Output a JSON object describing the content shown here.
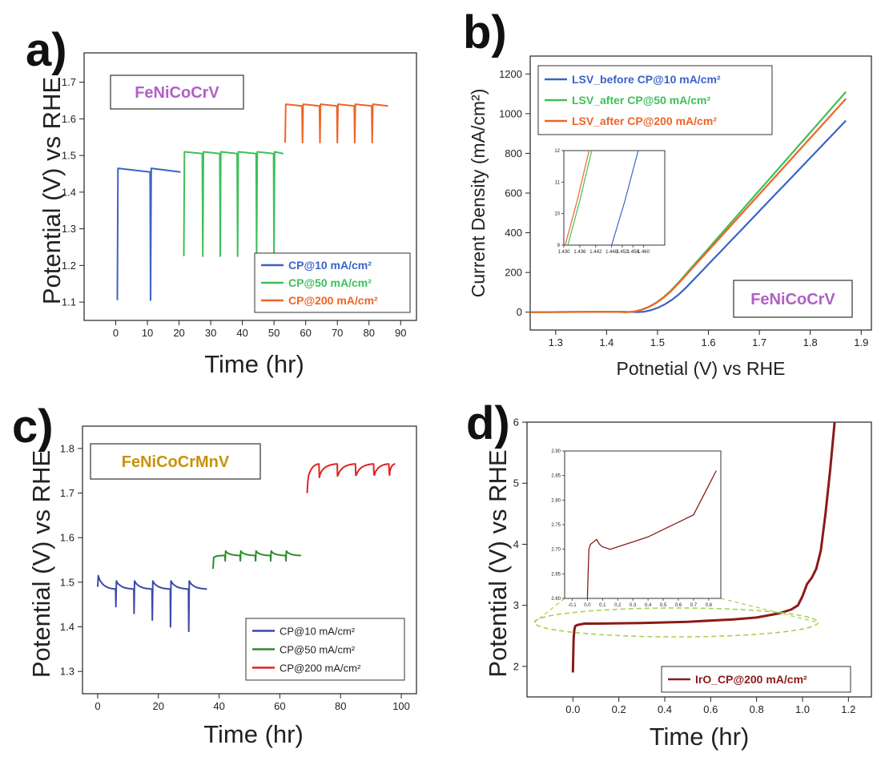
{
  "figure": {
    "panels": {
      "a": {
        "letter": "a)",
        "label_box": {
          "text": "FeNiCoCrV",
          "color": "#b25fc7"
        }
      },
      "b": {
        "letter": "b)",
        "label_box": {
          "text": "FeNiCoCrV",
          "color": "#b25fc7"
        }
      },
      "c": {
        "letter": "c)",
        "label_box": {
          "text": "FeNiCoCrMnV",
          "color": "#c8920c"
        }
      },
      "d": {
        "letter": "d)"
      }
    }
  },
  "chart_data": [
    {
      "id": "a",
      "type": "line",
      "xlabel": "Time (hr)",
      "ylabel": "Potential (V) vs RHE",
      "xlim": [
        -10,
        95
      ],
      "ylim": [
        1.05,
        1.78
      ],
      "xticks": [
        0,
        10,
        20,
        30,
        40,
        50,
        60,
        70,
        80,
        90
      ],
      "yticks": [
        1.1,
        1.2,
        1.3,
        1.4,
        1.5,
        1.6,
        1.7
      ],
      "legend": "bottom-right",
      "series": [
        {
          "name": "CP@10 mA/cm²",
          "color": "#3a63c9",
          "base": 1.455,
          "start_value": 1.465,
          "x_range": [
            0.5,
            20.5
          ],
          "spike_x": [
            0.8,
            11.0
          ],
          "spike_min": 1.105
        },
        {
          "name": "CP@50 mA/cm²",
          "color": "#3fbf5a",
          "base": 1.505,
          "start_value": 1.51,
          "x_range": [
            21.5,
            53.0
          ],
          "spike_x": [
            21.8,
            27.5,
            33.0,
            38.5,
            44.5,
            50.0
          ],
          "spike_min": 1.225
        },
        {
          "name": "CP@200 mA/cm²",
          "color": "#ee6426",
          "base": 1.635,
          "start_value": 1.64,
          "x_range": [
            53.5,
            86.0
          ],
          "spike_x": [
            53.8,
            59.0,
            64.5,
            70.0,
            75.5,
            81.0
          ],
          "spike_min": 1.535
        }
      ]
    },
    {
      "id": "b",
      "type": "line",
      "xlabel": "Potnetial (V) vs RHE",
      "ylabel": "Current Density (mA/cm²)",
      "xlim": [
        1.25,
        1.92
      ],
      "ylim": [
        -90,
        1290
      ],
      "xticks": [
        1.3,
        1.4,
        1.5,
        1.6,
        1.7,
        1.8,
        1.9
      ],
      "yticks": [
        0,
        200,
        400,
        600,
        800,
        1000,
        1200
      ],
      "legend": "top-left",
      "series": [
        {
          "name": "LSV_before CP@10 mA/cm²",
          "color": "#3a63c9",
          "onset": 1.46,
          "x_end": 1.87,
          "y_end": 965
        },
        {
          "name": "LSV_after CP@50 mA/cm²",
          "color": "#3fbf5a",
          "onset": 1.44,
          "x_end": 1.87,
          "y_end": 1110
        },
        {
          "name": "LSV_after CP@200 mA/cm²",
          "color": "#ee6426",
          "onset": 1.44,
          "x_end": 1.87,
          "y_end": 1075
        }
      ],
      "inset": {
        "xlim": [
          1.43,
          1.468
        ],
        "ylim": [
          9,
          12
        ],
        "xticks": [
          "1.430",
          "1.436",
          "1.442",
          "1.448",
          "1.452",
          "1.456",
          "1.460"
        ],
        "yticks": [
          "9",
          "10",
          "11",
          "12"
        ],
        "series": [
          {
            "color": "#3a63c9",
            "x": [
              1.448,
              1.458
            ],
            "y": [
              9,
              12
            ]
          },
          {
            "color": "#3fbf5a",
            "x": [
              1.4315,
              1.4405
            ],
            "y": [
              9,
              12
            ]
          },
          {
            "color": "#ee6426",
            "x": [
              1.4305,
              1.4395
            ],
            "y": [
              9,
              12
            ]
          }
        ]
      }
    },
    {
      "id": "c",
      "type": "line",
      "xlabel": "Time (hr)",
      "ylabel": "Potential (V) vs RHE",
      "xlim": [
        -5,
        105
      ],
      "ylim": [
        1.25,
        1.85
      ],
      "xticks": [
        0,
        20,
        40,
        60,
        80,
        100
      ],
      "yticks": [
        1.3,
        1.4,
        1.5,
        1.6,
        1.7,
        1.8
      ],
      "legend": "bottom-right",
      "series": [
        {
          "name": "CP@10 mA/cm²",
          "color": "#3c4aa8",
          "x_range": [
            0,
            36
          ],
          "start_value": 1.515,
          "base": 1.485,
          "recover_to": 1.503,
          "spike_x": [
            6,
            12,
            18,
            24,
            30
          ],
          "spike_mins": [
            1.445,
            1.43,
            1.415,
            1.4,
            1.39
          ]
        },
        {
          "name": "CP@50 mA/cm²",
          "color": "#2d8a2d",
          "x_range": [
            38,
            67
          ],
          "start_value": 1.555,
          "base": 1.56,
          "recover_to": 1.57,
          "spike_x": [
            42,
            47,
            52,
            57,
            62
          ],
          "spike_mins": [
            1.548,
            1.548,
            1.548,
            1.548,
            1.548
          ]
        },
        {
          "name": "CP@200 mA/cm²",
          "color": "#e02424",
          "x_range": [
            69,
            98
          ],
          "start_value": 1.725,
          "base": 1.765,
          "recover_to": 1.74,
          "spike_x": [
            73,
            79,
            85,
            91,
            96
          ],
          "spike_mins": [
            1.735,
            1.738,
            1.74,
            1.742,
            1.745
          ]
        }
      ]
    },
    {
      "id": "d",
      "type": "line",
      "xlabel": "Time (hr)",
      "ylabel": "Potential (V) vs RHE",
      "xlim": [
        -0.2,
        1.3
      ],
      "ylim": [
        1.5,
        6.0
      ],
      "xticks": [
        "0.0",
        "0.2",
        "0.4",
        "0.6",
        "0.8",
        "1.0",
        "1.2"
      ],
      "yticks": [
        2,
        3,
        4,
        5,
        6
      ],
      "legend": "bottom-right",
      "series": [
        {
          "name": "IrO_CP@200 mA/cm²",
          "color": "#8b1a1a",
          "x": [
            0.0,
            0.003,
            0.006,
            0.01,
            0.02,
            0.05,
            0.1,
            0.3,
            0.5,
            0.7,
            0.8,
            0.9,
            0.95,
            0.98,
            1.0,
            1.02,
            1.04,
            1.06,
            1.08,
            1.1,
            1.12,
            1.135,
            1.14
          ],
          "y": [
            1.9,
            2.45,
            2.6,
            2.66,
            2.68,
            2.7,
            2.7,
            2.71,
            2.73,
            2.77,
            2.8,
            2.87,
            2.93,
            3.0,
            3.15,
            3.35,
            3.45,
            3.6,
            3.9,
            4.5,
            5.2,
            5.8,
            6.0
          ]
        }
      ],
      "inset": {
        "xlim": [
          -0.15,
          0.88
        ],
        "ylim": [
          2.6,
          2.9
        ],
        "xticks": [
          "-0.1",
          "0.0",
          "0.1",
          "0.2",
          "0.3",
          "0.4",
          "0.5",
          "0.6",
          "0.7",
          "0.8"
        ],
        "yticks": [
          "2.60",
          "2.65",
          "2.70",
          "2.75",
          "2.80",
          "2.85",
          "2.90"
        ],
        "series": [
          {
            "color": "#8b1a1a",
            "x": [
              0.0,
              0.005,
              0.01,
              0.02,
              0.04,
              0.06,
              0.08,
              0.1,
              0.15,
              0.2,
              0.3,
              0.4,
              0.5,
              0.6,
              0.7,
              0.75,
              0.8,
              0.85
            ],
            "y": [
              2.6,
              2.65,
              2.7,
              2.71,
              2.715,
              2.72,
              2.71,
              2.705,
              2.7,
              2.705,
              2.715,
              2.725,
              2.74,
              2.755,
              2.77,
              2.8,
              2.83,
              2.86
            ]
          }
        ]
      }
    }
  ]
}
